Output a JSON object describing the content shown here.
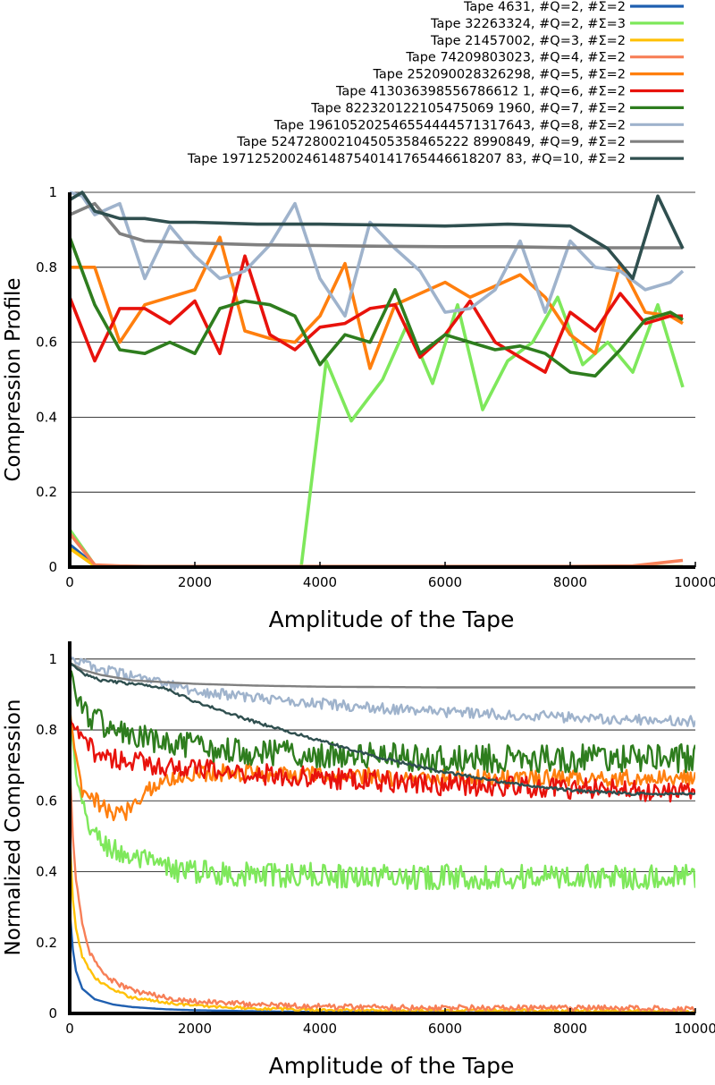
{
  "chart_data": [
    {
      "type": "line",
      "xlabel": "Amplitude of the Tape",
      "ylabel": "Compression Profile",
      "xlim": [
        0,
        10000
      ],
      "ylim": [
        0,
        1
      ],
      "xticks": [
        "0",
        "2000",
        "4000",
        "6000",
        "8000",
        "10000"
      ],
      "yticks": [
        "0",
        "0.2",
        "0.4",
        "0.6",
        "0.8",
        "1"
      ],
      "grid": "horizontal",
      "legend_position": "top-right",
      "series": [
        {
          "name": "Tape 4631, #Q=2, #Σ=2",
          "color": "#1f5fb0",
          "x": [
            0,
            400,
            800,
            1200,
            1600,
            2000,
            3000,
            4000,
            5000,
            6000,
            7000,
            8000,
            9000,
            9800
          ],
          "y": [
            0.06,
            0.005,
            0.002,
            0.001,
            0.001,
            0.001,
            0.001,
            0.001,
            0.001,
            0.001,
            0.001,
            0.001,
            0.001,
            0.001
          ]
        },
        {
          "name": "Tape 32263324, #Q=2, #Σ=3",
          "color": "#7ee85b",
          "x": [
            0,
            400,
            800,
            1200,
            2000,
            3000,
            3700,
            4100,
            4500,
            5000,
            5400,
            5800,
            6200,
            6600,
            7000,
            7400,
            7800,
            8200,
            8600,
            9000,
            9400,
            9800
          ],
          "y": [
            0.1,
            0.005,
            0.002,
            0.001,
            0.001,
            0.001,
            0.001,
            0.55,
            0.39,
            0.5,
            0.65,
            0.49,
            0.7,
            0.42,
            0.55,
            0.6,
            0.72,
            0.54,
            0.6,
            0.52,
            0.7,
            0.48
          ]
        },
        {
          "name": "Tape 21457002, #Q=3, #Σ=2",
          "color": "#ffc107",
          "x": [
            0,
            400,
            800,
            1200,
            2000,
            3000,
            4000,
            5000,
            6000,
            7000,
            8000,
            9000,
            9800
          ],
          "y": [
            0.05,
            0.003,
            0.002,
            0.001,
            0.001,
            0.001,
            0.001,
            0.001,
            0.001,
            0.001,
            0.001,
            0.001,
            0.001
          ]
        },
        {
          "name": "Tape 74209803023, #Q=4, #Σ=2",
          "color": "#f77f57",
          "x": [
            0,
            400,
            800,
            1200,
            2000,
            3000,
            4000,
            5000,
            6000,
            7000,
            8000,
            9000,
            9800
          ],
          "y": [
            0.09,
            0.006,
            0.003,
            0.002,
            0.002,
            0.002,
            0.002,
            0.002,
            0.002,
            0.002,
            0.002,
            0.003,
            0.018
          ]
        },
        {
          "name": "Tape 252090028326298, #Q=5, #Σ=2",
          "color": "#ff7f0e",
          "x": [
            0,
            400,
            800,
            1200,
            2000,
            2400,
            2800,
            3200,
            3600,
            4000,
            4400,
            4800,
            5200,
            5600,
            6000,
            6400,
            6800,
            7200,
            7600,
            8000,
            8400,
            8800,
            9200,
            9600,
            9800
          ],
          "y": [
            0.8,
            0.8,
            0.6,
            0.7,
            0.74,
            0.88,
            0.63,
            0.61,
            0.6,
            0.67,
            0.81,
            0.53,
            0.7,
            0.73,
            0.76,
            0.72,
            0.75,
            0.78,
            0.72,
            0.62,
            0.57,
            0.81,
            0.68,
            0.67,
            0.65
          ]
        },
        {
          "name": "Tape 413036398556786612 1, #Q=6, #Σ=2",
          "color": "#e8120c",
          "x": [
            0,
            400,
            800,
            1200,
            1600,
            2000,
            2400,
            2800,
            3200,
            3600,
            4000,
            4400,
            4800,
            5200,
            5600,
            6000,
            6400,
            6800,
            7200,
            7600,
            8000,
            8400,
            8800,
            9200,
            9600,
            9800
          ],
          "y": [
            0.72,
            0.55,
            0.69,
            0.69,
            0.65,
            0.71,
            0.57,
            0.83,
            0.62,
            0.58,
            0.64,
            0.65,
            0.69,
            0.7,
            0.56,
            0.62,
            0.71,
            0.6,
            0.56,
            0.52,
            0.68,
            0.63,
            0.73,
            0.65,
            0.67,
            0.67
          ]
        },
        {
          "name": "Tape 822320122105475069 1960, #Q=7, #Σ=2",
          "color": "#2e7d1e",
          "x": [
            0,
            400,
            800,
            1200,
            1600,
            2000,
            2400,
            2800,
            3200,
            3600,
            4000,
            4400,
            4800,
            5200,
            5600,
            6000,
            6400,
            6800,
            7200,
            7600,
            8000,
            8400,
            8800,
            9200,
            9600,
            9800
          ],
          "y": [
            0.88,
            0.7,
            0.58,
            0.57,
            0.6,
            0.57,
            0.69,
            0.71,
            0.7,
            0.67,
            0.54,
            0.62,
            0.6,
            0.74,
            0.57,
            0.62,
            0.6,
            0.58,
            0.59,
            0.57,
            0.52,
            0.51,
            0.58,
            0.66,
            0.68,
            0.66
          ]
        },
        {
          "name": "Tape 196105202546554444571317643, #Q=8, #Σ=2",
          "color": "#9fb3cc",
          "x": [
            0,
            200,
            400,
            800,
            1200,
            1600,
            2000,
            2400,
            2800,
            3200,
            3600,
            4000,
            4400,
            4800,
            5200,
            5600,
            6000,
            6400,
            6800,
            7200,
            7600,
            8000,
            8400,
            8800,
            9200,
            9600,
            9800
          ],
          "y": [
            1.0,
            0.99,
            0.94,
            0.97,
            0.77,
            0.91,
            0.83,
            0.77,
            0.79,
            0.86,
            0.97,
            0.77,
            0.67,
            0.92,
            0.85,
            0.79,
            0.68,
            0.69,
            0.74,
            0.87,
            0.68,
            0.87,
            0.8,
            0.79,
            0.74,
            0.76,
            0.79
          ]
        },
        {
          "name": "Tape 524728002104505358465222 8990849, #Q=9, #Σ=2",
          "color": "#808080",
          "x": [
            0,
            400,
            800,
            1200,
            2000,
            3000,
            4000,
            5000,
            6000,
            7000,
            8000,
            9000,
            9800
          ],
          "y": [
            0.94,
            0.97,
            0.89,
            0.87,
            0.865,
            0.86,
            0.858,
            0.856,
            0.855,
            0.855,
            0.852,
            0.852,
            0.852
          ]
        },
        {
          "name": "Tape 1971252002461487540141765446618207 83, #Q=10, #Σ=2",
          "color": "#2f4f4f",
          "x": [
            0,
            200,
            400,
            800,
            1200,
            1600,
            2000,
            3000,
            4000,
            5000,
            6000,
            7000,
            8000,
            8600,
            9000,
            9400,
            9800
          ],
          "y": [
            0.98,
            1.0,
            0.95,
            0.93,
            0.93,
            0.92,
            0.92,
            0.915,
            0.915,
            0.913,
            0.91,
            0.915,
            0.91,
            0.85,
            0.77,
            0.99,
            0.85
          ]
        }
      ]
    },
    {
      "type": "line",
      "xlabel": "Amplitude of the Tape",
      "ylabel": "Normalized Compression",
      "xlim": [
        0,
        10000
      ],
      "ylim": [
        0,
        1.05
      ],
      "xticks": [
        "0",
        "2000",
        "4000",
        "6000",
        "8000",
        "10000"
      ],
      "yticks": [
        "0",
        "0.2",
        "0.4",
        "0.6",
        "0.8",
        "1"
      ],
      "grid": "horizontal",
      "series": [
        {
          "name": "Tape 4631",
          "color": "#1f5fb0",
          "noise": 0.0,
          "x": [
            0,
            50,
            100,
            200,
            400,
            700,
            1000,
            1500,
            2000,
            3000,
            4000,
            6000,
            8000,
            10000
          ],
          "y": [
            0.29,
            0.18,
            0.12,
            0.07,
            0.04,
            0.025,
            0.018,
            0.012,
            0.009,
            0.006,
            0.004,
            0.003,
            0.002,
            0.002
          ]
        },
        {
          "name": "Tape 32263324",
          "color": "#7ee85b",
          "noise": 0.035,
          "x": [
            0,
            100,
            200,
            400,
            700,
            1000,
            1500,
            2000,
            3000,
            4000,
            6000,
            8000,
            10000
          ],
          "y": [
            0.85,
            0.67,
            0.58,
            0.5,
            0.46,
            0.44,
            0.41,
            0.4,
            0.39,
            0.39,
            0.385,
            0.385,
            0.385
          ]
        },
        {
          "name": "Tape 21457002",
          "color": "#ffc107",
          "noise": 0.004,
          "x": [
            0,
            50,
            100,
            200,
            400,
            700,
            1000,
            1500,
            2000,
            3000,
            4000,
            6000,
            8000,
            10000
          ],
          "y": [
            0.5,
            0.32,
            0.24,
            0.16,
            0.1,
            0.065,
            0.045,
            0.032,
            0.022,
            0.014,
            0.01,
            0.008,
            0.007,
            0.006
          ]
        },
        {
          "name": "Tape 74209803023",
          "color": "#f77f57",
          "noise": 0.008,
          "x": [
            0,
            50,
            100,
            200,
            300,
            500,
            700,
            1000,
            1500,
            2000,
            3000,
            4000,
            6000,
            8000,
            10000
          ],
          "y": [
            0.7,
            0.5,
            0.38,
            0.25,
            0.18,
            0.12,
            0.09,
            0.065,
            0.045,
            0.035,
            0.025,
            0.02,
            0.016,
            0.015,
            0.014
          ]
        },
        {
          "name": "Tape 252090028326298",
          "color": "#ff7f0e",
          "noise": 0.025,
          "x": [
            0,
            100,
            200,
            400,
            700,
            900,
            1200,
            1600,
            2000,
            3000,
            4000,
            6000,
            8000,
            10000
          ],
          "y": [
            0.86,
            0.72,
            0.62,
            0.6,
            0.56,
            0.57,
            0.63,
            0.66,
            0.68,
            0.68,
            0.67,
            0.665,
            0.665,
            0.665
          ]
        },
        {
          "name": "Tape 413036398556786612",
          "color": "#e8120c",
          "noise": 0.03,
          "x": [
            0,
            100,
            200,
            400,
            700,
            1000,
            1500,
            2000,
            3000,
            4000,
            5000,
            6000,
            7000,
            8000,
            9000,
            10000
          ],
          "y": [
            0.83,
            0.8,
            0.77,
            0.74,
            0.72,
            0.71,
            0.7,
            0.69,
            0.675,
            0.665,
            0.655,
            0.645,
            0.64,
            0.635,
            0.63,
            0.625
          ]
        },
        {
          "name": "Tape 822320122105475069",
          "color": "#2e7d1e",
          "noise": 0.04,
          "x": [
            0,
            100,
            200,
            400,
            700,
            1000,
            1500,
            2000,
            3000,
            4000,
            6000,
            8000,
            10000
          ],
          "y": [
            0.98,
            0.9,
            0.86,
            0.83,
            0.8,
            0.78,
            0.76,
            0.75,
            0.74,
            0.73,
            0.72,
            0.72,
            0.72
          ]
        },
        {
          "name": "Tape 196105202546554444",
          "color": "#9fb3cc",
          "noise": 0.015,
          "x": [
            0,
            200,
            500,
            1000,
            1500,
            2000,
            3000,
            4000,
            5000,
            6000,
            7000,
            8000,
            9000,
            10000
          ],
          "y": [
            1.0,
            0.99,
            0.97,
            0.95,
            0.93,
            0.91,
            0.89,
            0.875,
            0.86,
            0.85,
            0.845,
            0.835,
            0.83,
            0.825
          ]
        },
        {
          "name": "Tape 524728002104505358",
          "color": "#808080",
          "noise": 0.0,
          "x": [
            0,
            200,
            500,
            1000,
            2000,
            3000,
            4000,
            6000,
            8000,
            10000
          ],
          "y": [
            0.99,
            0.97,
            0.955,
            0.94,
            0.93,
            0.925,
            0.922,
            0.92,
            0.92,
            0.92
          ]
        },
        {
          "name": "Tape 197125200246148754",
          "color": "#2f4f4f",
          "noise": 0.004,
          "x": [
            0,
            200,
            500,
            1000,
            1500,
            2000,
            3000,
            4000,
            5000,
            6000,
            7000,
            8000,
            9000,
            10000
          ],
          "y": [
            0.99,
            0.96,
            0.94,
            0.93,
            0.92,
            0.88,
            0.82,
            0.77,
            0.72,
            0.68,
            0.65,
            0.63,
            0.62,
            0.62
          ]
        }
      ]
    }
  ],
  "legend": [
    {
      "label": "Tape 4631, #Q=2, #Σ=2",
      "color": "#1f5fb0"
    },
    {
      "label": "Tape 32263324, #Q=2, #Σ=3",
      "color": "#7ee85b"
    },
    {
      "label": "Tape 21457002, #Q=3, #Σ=2",
      "color": "#ffc107"
    },
    {
      "label": "Tape 74209803023, #Q=4, #Σ=2",
      "color": "#f77f57"
    },
    {
      "label": "Tape 252090028326298, #Q=5, #Σ=2",
      "color": "#ff7f0e"
    },
    {
      "label": "Tape 413036398556786612 1, #Q=6, #Σ=2",
      "color": "#e8120c"
    },
    {
      "label": "Tape 822320122105475069 1960, #Q=7, #Σ=2",
      "color": "#2e7d1e"
    },
    {
      "label": "Tape 196105202546554444571317643, #Q=8, #Σ=2",
      "color": "#9fb3cc"
    },
    {
      "label": "Tape 524728002104505358465222 8990849, #Q=9, #Σ=2",
      "color": "#808080"
    },
    {
      "label": "Tape 1971252002461487540141765446618207 83, #Q=10, #Σ=2",
      "color": "#2f4f4f"
    }
  ]
}
